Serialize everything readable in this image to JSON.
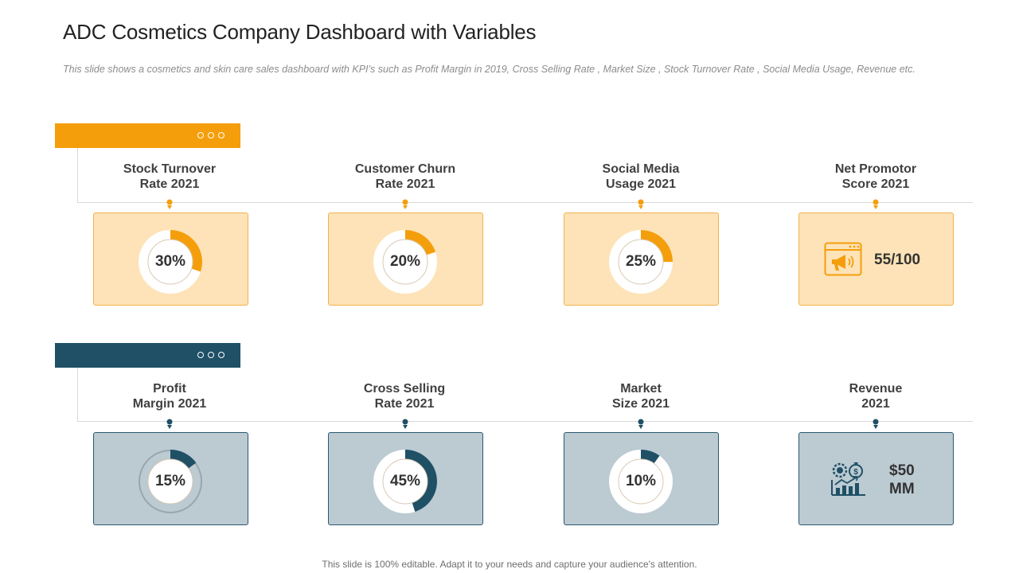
{
  "title": "ADC Cosmetics Company Dashboard with Variables",
  "subtitle": "This slide shows a cosmetics and skin care sales dashboard with KPI’s such as Profit Margin in 2019, Cross Selling Rate , Market Size , Stock Turnover Rate , Social Media Usage, Revenue etc.",
  "colors": {
    "orange": "#f59e0b",
    "orange_card": "#fde3b7",
    "teal": "#1f5066",
    "teal_card": "#bccad2"
  },
  "rows": [
    {
      "theme": "orange",
      "kpis": [
        {
          "label_line1": "Stock Turnover",
          "label_line2": "Rate 2021",
          "value_text": "30%",
          "value": 30,
          "kind": "donut"
        },
        {
          "label_line1": "Customer Churn",
          "label_line2": "Rate 2021",
          "value_text": "20%",
          "value": 20,
          "kind": "donut"
        },
        {
          "label_line1": "Social Media",
          "label_line2": "Usage 2021",
          "value_text": "25%",
          "value": 25,
          "kind": "donut"
        },
        {
          "label_line1": "Net Promotor",
          "label_line2": "Score 2021",
          "value_text": "55/100",
          "kind": "icon",
          "icon": "megaphone-browser-icon"
        }
      ]
    },
    {
      "theme": "teal",
      "kpis": [
        {
          "label_line1": "Profit",
          "label_line2": "Margin 2021",
          "value_text": "15%",
          "value": 15,
          "kind": "donut"
        },
        {
          "label_line1": "Cross Selling",
          "label_line2": "Rate 2021",
          "value_text": "45%",
          "value": 45,
          "kind": "donut"
        },
        {
          "label_line1": "Market",
          "label_line2": "Size 2021",
          "value_text": "10%",
          "value": 10,
          "kind": "donut"
        },
        {
          "label_line1": "Revenue",
          "label_line2": "2021",
          "value_text_line1": "$50",
          "value_text_line2": "MM",
          "kind": "icon",
          "icon": "revenue-growth-icon"
        }
      ]
    }
  ],
  "footer": "This slide is 100% editable. Adapt it to your needs and capture your audience's attention."
}
